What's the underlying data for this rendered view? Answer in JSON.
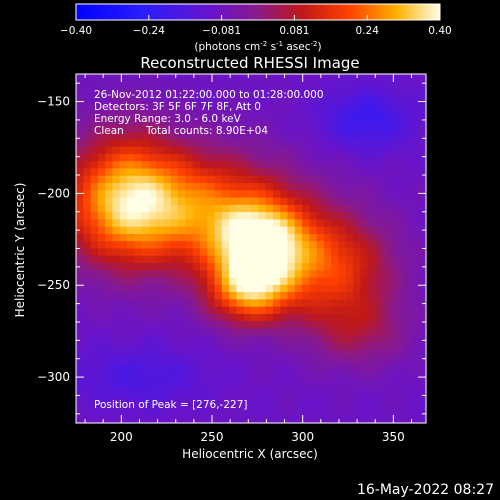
{
  "chart_data": {
    "type": "heatmap",
    "title": "Reconstructed RHESSI Image",
    "xlabel": "Heliocentric X (arcsec)",
    "ylabel": "Heliocentric Y (arcsec)",
    "xlim": [
      175,
      368
    ],
    "ylim": [
      -325,
      -135
    ],
    "xticks": [
      200,
      250,
      300,
      350
    ],
    "yticks": [
      -150,
      -200,
      -250,
      -300
    ],
    "colorbar": {
      "min": -0.4,
      "max": 0.4,
      "ticks": [
        "-0.40",
        "-0.24",
        "-0.081",
        "0.081",
        "0.24",
        "0.40"
      ],
      "unit_text": "(photons cm",
      "unit_sup1": "-2",
      "unit_mid": " s",
      "unit_sup2": "-1",
      "unit_mid2": " asec",
      "unit_sup3": "-2",
      "unit_end": ")"
    },
    "annotations": {
      "time_range": "26-Nov-2012 01:22:00.000 to 01:28:00.000",
      "detectors": "Detectors: 3F 5F 6F 7F 8F, Att 0",
      "energy_range": "Energy Range: 3.0 - 6.0 keV",
      "method": "Clean",
      "total_counts": "Total counts: 8.90E+04",
      "peak": "Position of Peak = [276,-227]"
    },
    "sources": [
      {
        "x": 230,
        "y": -208,
        "sx": 42,
        "sy": 22,
        "amp": 0.34
      },
      {
        "x": 276,
        "y": -227,
        "sx": 18,
        "sy": 16,
        "amp": 0.4
      },
      {
        "x": 270,
        "y": -253,
        "sx": 16,
        "sy": 13,
        "amp": 0.33
      },
      {
        "x": 315,
        "y": -240,
        "sx": 24,
        "sy": 20,
        "amp": 0.26
      },
      {
        "x": 202,
        "y": -200,
        "sx": 20,
        "sy": 26,
        "amp": 0.22
      },
      {
        "x": 330,
        "y": -275,
        "sx": 20,
        "sy": 14,
        "amp": 0.12
      }
    ],
    "background": -0.09,
    "negative_regions": [
      {
        "x": 335,
        "y": -160,
        "sx": 18,
        "sy": 12,
        "amp": -0.12
      },
      {
        "x": 210,
        "y": -300,
        "sx": 25,
        "sy": 12,
        "amp": -0.08
      }
    ]
  },
  "footer": {
    "timestamp": "16-May-2022 08:27"
  }
}
